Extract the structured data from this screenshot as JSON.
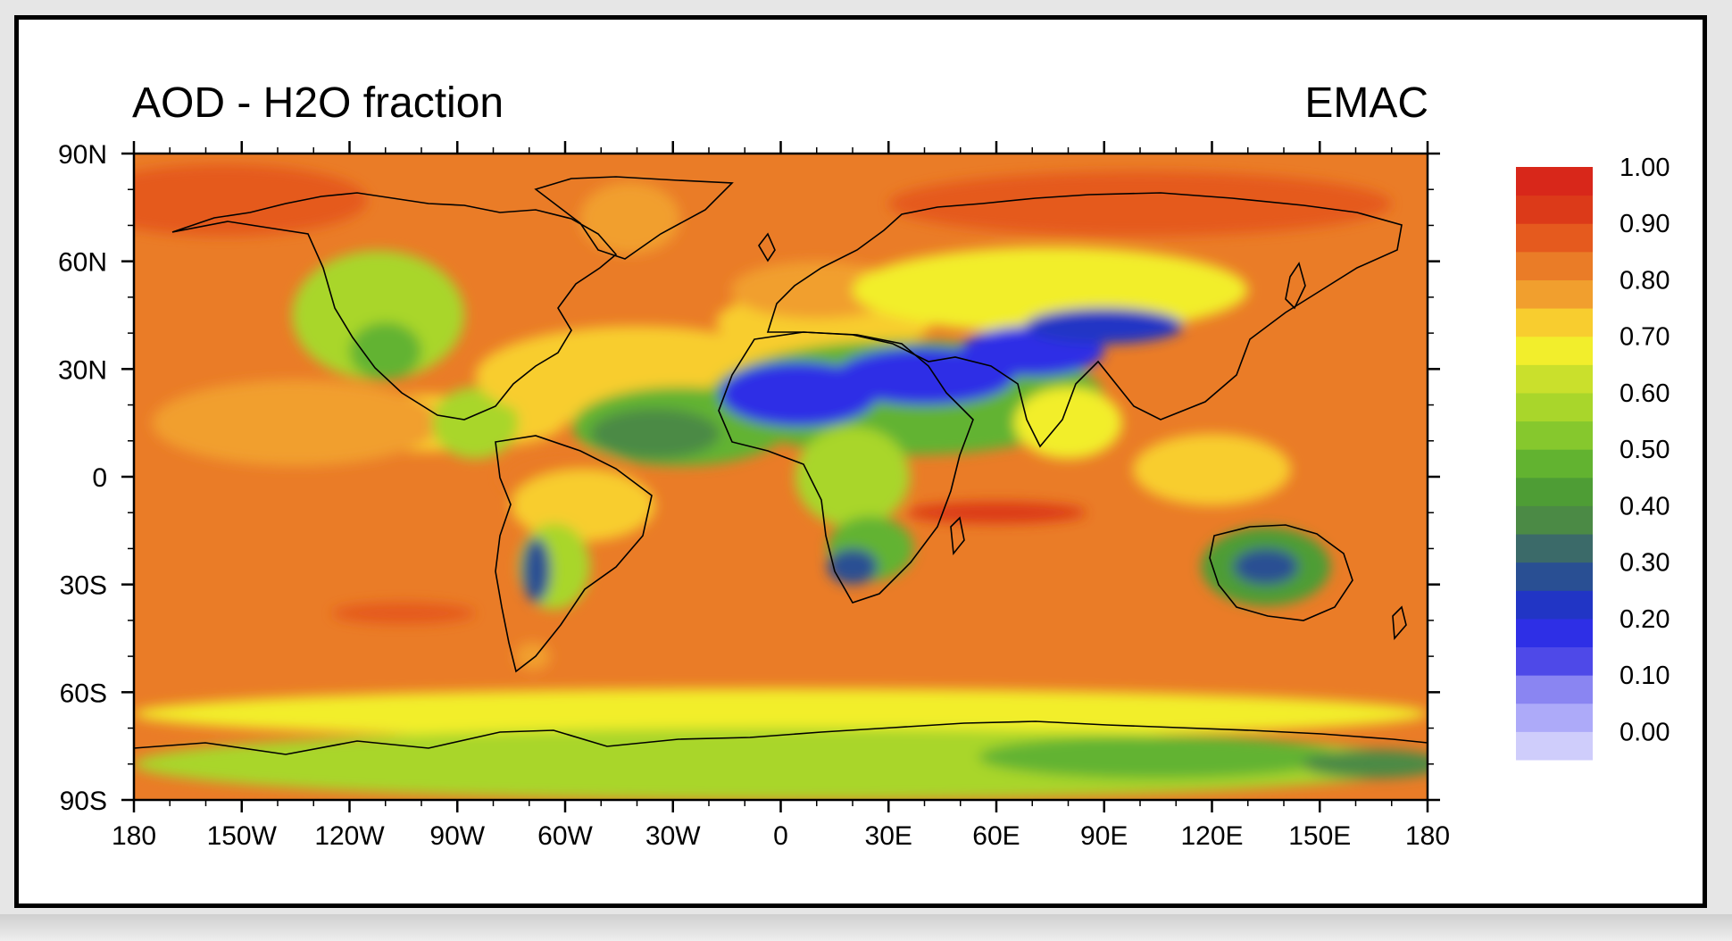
{
  "title_left": "AOD - H2O fraction",
  "title_right": "EMAC",
  "map": {
    "projection": "cylindrical-equidistant",
    "lon_range": [
      -180,
      180
    ],
    "lat_range": [
      -90,
      90
    ],
    "lat_ticks": [
      {
        "lat": 90,
        "label": "90N"
      },
      {
        "lat": 60,
        "label": "60N"
      },
      {
        "lat": 30,
        "label": "30N"
      },
      {
        "lat": 0,
        "label": "0"
      },
      {
        "lat": -30,
        "label": "30S"
      },
      {
        "lat": -60,
        "label": "60S"
      },
      {
        "lat": -90,
        "label": "90S"
      }
    ],
    "lon_ticks": [
      {
        "lon": -180,
        "label": "180"
      },
      {
        "lon": -150,
        "label": "150W"
      },
      {
        "lon": -120,
        "label": "120W"
      },
      {
        "lon": -90,
        "label": "90W"
      },
      {
        "lon": -60,
        "label": "60W"
      },
      {
        "lon": -30,
        "label": "30W"
      },
      {
        "lon": 0,
        "label": "0"
      },
      {
        "lon": 30,
        "label": "30E"
      },
      {
        "lon": 60,
        "label": "60E"
      },
      {
        "lon": 90,
        "label": "90E"
      },
      {
        "lon": 120,
        "label": "120E"
      },
      {
        "lon": 150,
        "label": "150E"
      },
      {
        "lon": 180,
        "label": "180"
      }
    ],
    "background_level": 0.87,
    "field_regions": [
      {
        "lon": -155,
        "lat": 77,
        "rlon": 40,
        "rlat": 10,
        "value": 0.92
      },
      {
        "lon": 100,
        "lat": 76,
        "rlon": 70,
        "rlat": 9,
        "value": 0.92
      },
      {
        "lon": -42,
        "lat": 72,
        "rlon": 14,
        "rlat": 10,
        "value": 0.82
      },
      {
        "lon": -112,
        "lat": 45,
        "rlon": 24,
        "rlat": 18,
        "value": 0.62
      },
      {
        "lon": -110,
        "lat": 35,
        "rlon": 10,
        "rlat": 8,
        "value": 0.5
      },
      {
        "lon": -100,
        "lat": 15,
        "rlon": 40,
        "rlat": 8,
        "value": 0.74
      },
      {
        "lon": -135,
        "lat": 15,
        "rlon": 40,
        "rlat": 12,
        "value": 0.82
      },
      {
        "lon": -85,
        "lat": 15,
        "rlon": 12,
        "rlat": 10,
        "value": 0.6
      },
      {
        "lon": -40,
        "lat": 28,
        "rlon": 45,
        "rlat": 14,
        "value": 0.76
      },
      {
        "lon": -28,
        "lat": 14,
        "rlon": 30,
        "rlat": 11,
        "value": 0.5
      },
      {
        "lon": -35,
        "lat": 12,
        "rlon": 18,
        "rlat": 7,
        "value": 0.42
      },
      {
        "lon": 12,
        "lat": 43,
        "rlon": 30,
        "rlat": 9,
        "value": 0.74
      },
      {
        "lon": 10,
        "lat": 52,
        "rlon": 24,
        "rlat": 8,
        "value": 0.8
      },
      {
        "lon": 75,
        "lat": 52,
        "rlon": 55,
        "rlat": 12,
        "value": 0.72
      },
      {
        "lon": 35,
        "lat": 22,
        "rlon": 55,
        "rlat": 16,
        "value": 0.5
      },
      {
        "lon": 5,
        "lat": 23,
        "rlon": 22,
        "rlat": 9,
        "value": 0.2
      },
      {
        "lon": 40,
        "lat": 28,
        "rlon": 25,
        "rlat": 8,
        "value": 0.2
      },
      {
        "lon": 70,
        "lat": 35,
        "rlon": 20,
        "rlat": 7,
        "value": 0.22
      },
      {
        "lon": 90,
        "lat": 42,
        "rlon": 22,
        "rlat": 5,
        "value": 0.25
      },
      {
        "lon": 80,
        "lat": 15,
        "rlon": 15,
        "rlat": 10,
        "value": 0.72
      },
      {
        "lon": 20,
        "lat": 0,
        "rlon": 16,
        "rlat": 14,
        "value": 0.58
      },
      {
        "lon": 25,
        "lat": -20,
        "rlon": 12,
        "rlat": 9,
        "value": 0.48
      },
      {
        "lon": 20,
        "lat": -25,
        "rlon": 7,
        "rlat": 5,
        "value": 0.3
      },
      {
        "lon": -60,
        "lat": 0,
        "rlon": 18,
        "rlat": 8,
        "value": 0.86
      },
      {
        "lon": -55,
        "lat": -8,
        "rlon": 20,
        "rlat": 10,
        "value": 0.74
      },
      {
        "lon": -63,
        "lat": -25,
        "rlon": 10,
        "rlat": 12,
        "value": 0.58
      },
      {
        "lon": -68,
        "lat": -26,
        "rlon": 4,
        "rlat": 9,
        "value": 0.28
      },
      {
        "lon": -69,
        "lat": -50,
        "rlon": 5,
        "rlat": 4,
        "value": 0.8
      },
      {
        "lon": 135,
        "lat": -25,
        "rlon": 18,
        "rlat": 11,
        "value": 0.46
      },
      {
        "lon": 135,
        "lat": -25,
        "rlon": 9,
        "rlat": 5,
        "value": 0.3
      },
      {
        "lon": 120,
        "lat": 2,
        "rlon": 22,
        "rlat": 10,
        "value": 0.74
      },
      {
        "lon": 60,
        "lat": -10,
        "rlon": 25,
        "rlat": 3,
        "value": 0.93
      },
      {
        "lon": -105,
        "lat": -38,
        "rlon": 20,
        "rlat": 3,
        "value": 0.92
      },
      {
        "lon": 0,
        "lat": -66,
        "rlon": 180,
        "rlat": 7,
        "value": 0.72
      },
      {
        "lon": 0,
        "lat": -80,
        "rlon": 180,
        "rlat": 10,
        "value": 0.58
      },
      {
        "lon": 105,
        "lat": -78,
        "rlon": 50,
        "rlat": 6,
        "value": 0.5
      },
      {
        "lon": 165,
        "lat": -80,
        "rlon": 20,
        "rlat": 4,
        "value": 0.42
      }
    ]
  },
  "colorbar": {
    "colors": [
      "#cfcdfb",
      "#adaaf9",
      "#8a85f2",
      "#4e49e8",
      "#2e2fe6",
      "#2135c5",
      "#294f93",
      "#3b6a69",
      "#4b8a45",
      "#4e9d35",
      "#62b330",
      "#86c82d",
      "#a9d62b",
      "#cae02c",
      "#f2ee2c",
      "#f8cd2f",
      "#f19f2e",
      "#ea7c27",
      "#e55a1e",
      "#dc3a19",
      "#d8271a"
    ],
    "label_values": [
      0.0,
      0.1,
      0.2,
      0.3,
      0.4,
      0.5,
      0.6,
      0.7,
      0.8,
      0.9,
      1.0
    ],
    "labels": [
      "0.00",
      "0.10",
      "0.20",
      "0.30",
      "0.40",
      "0.50",
      "0.60",
      "0.70",
      "0.80",
      "0.90",
      "1.00"
    ]
  }
}
